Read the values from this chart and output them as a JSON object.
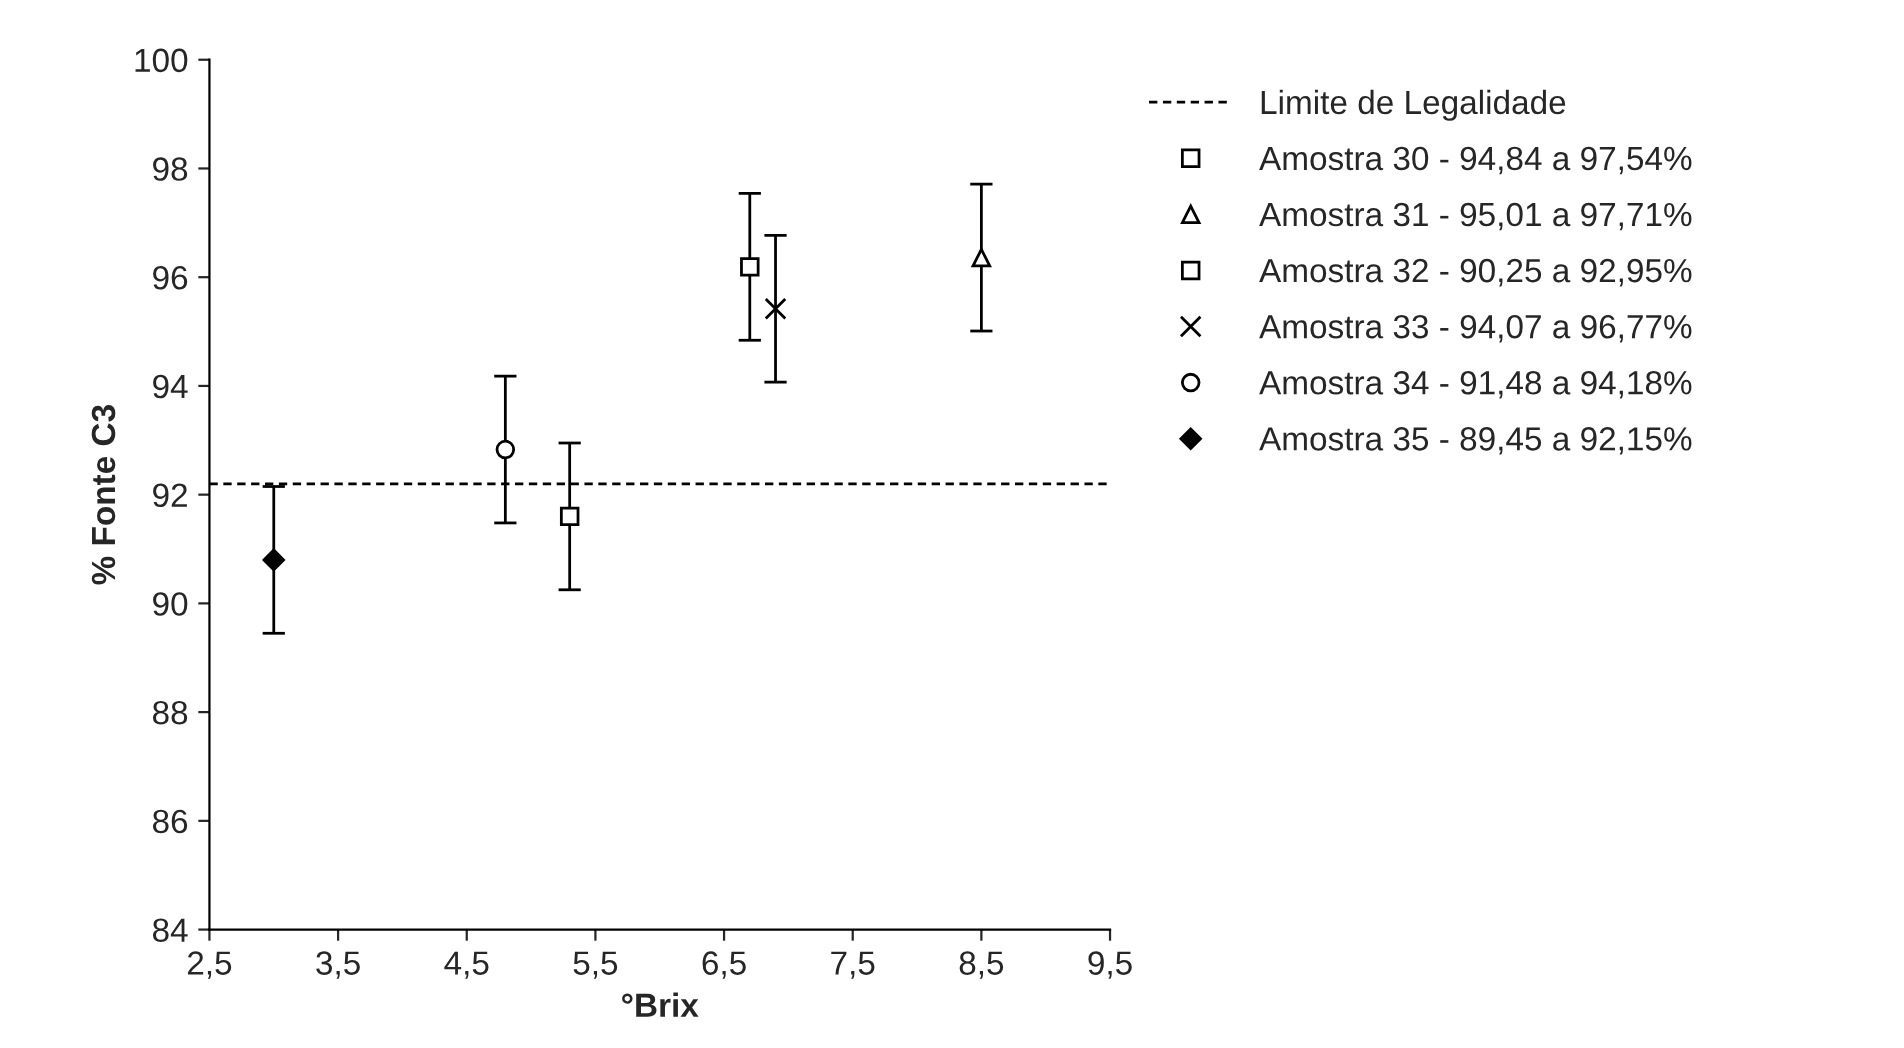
{
  "chart_data": {
    "type": "scatter",
    "xlabel": "°Brix",
    "ylabel": "% Fonte C3",
    "xlim": [
      2.5,
      9.5
    ],
    "xticks": [
      {
        "value": 2.5,
        "label": "2,5"
      },
      {
        "value": 3.5,
        "label": "3,5"
      },
      {
        "value": 4.5,
        "label": "4,5"
      },
      {
        "value": 5.5,
        "label": "5,5"
      },
      {
        "value": 6.5,
        "label": "6,5"
      },
      {
        "value": 7.5,
        "label": "7,5"
      },
      {
        "value": 8.5,
        "label": "8,5"
      },
      {
        "value": 9.5,
        "label": "9,5"
      }
    ],
    "ylim": [
      84,
      100
    ],
    "yticks": [
      84,
      86,
      88,
      90,
      92,
      94,
      96,
      98,
      100
    ],
    "grid": false,
    "legend": "right",
    "ref_lines": [
      {
        "axis": "y",
        "value": 92.2,
        "label": "Limite de Legalidade",
        "color": "#000000",
        "line_style": "dashed"
      }
    ],
    "series": [
      {
        "name": "Amostra 30 - 94,84 a 97,54%",
        "color": "#000000",
        "marker": "square",
        "x": [
          6.7
        ],
        "values": [
          96.19
        ],
        "errors": [
          1.35
        ]
      },
      {
        "name": "Amostra 31 - 95,01 a 97,71%",
        "color": "#000000",
        "marker": "triangle",
        "x": [
          8.5
        ],
        "values": [
          96.36
        ],
        "errors": [
          1.35
        ]
      },
      {
        "name": "Amostra 32 - 90,25 a 92,95%",
        "color": "#000000",
        "marker": "square",
        "x": [
          5.3
        ],
        "values": [
          91.6
        ],
        "errors": [
          1.35
        ]
      },
      {
        "name": "Amostra 33 - 94,07 a 96,77%",
        "color": "#000000",
        "marker": "cross",
        "x": [
          6.9
        ],
        "values": [
          95.42
        ],
        "errors": [
          1.35
        ]
      },
      {
        "name": "Amostra 34 - 91,48 a 94,18%",
        "color": "#000000",
        "marker": "circle",
        "x": [
          4.8
        ],
        "values": [
          92.83
        ],
        "errors": [
          1.35
        ]
      },
      {
        "name": "Amostra 35 - 89,45 a 92,15%",
        "color": "#000000",
        "marker": "diamond",
        "x": [
          3.0
        ],
        "values": [
          90.8
        ],
        "errors": [
          1.35
        ]
      }
    ]
  }
}
